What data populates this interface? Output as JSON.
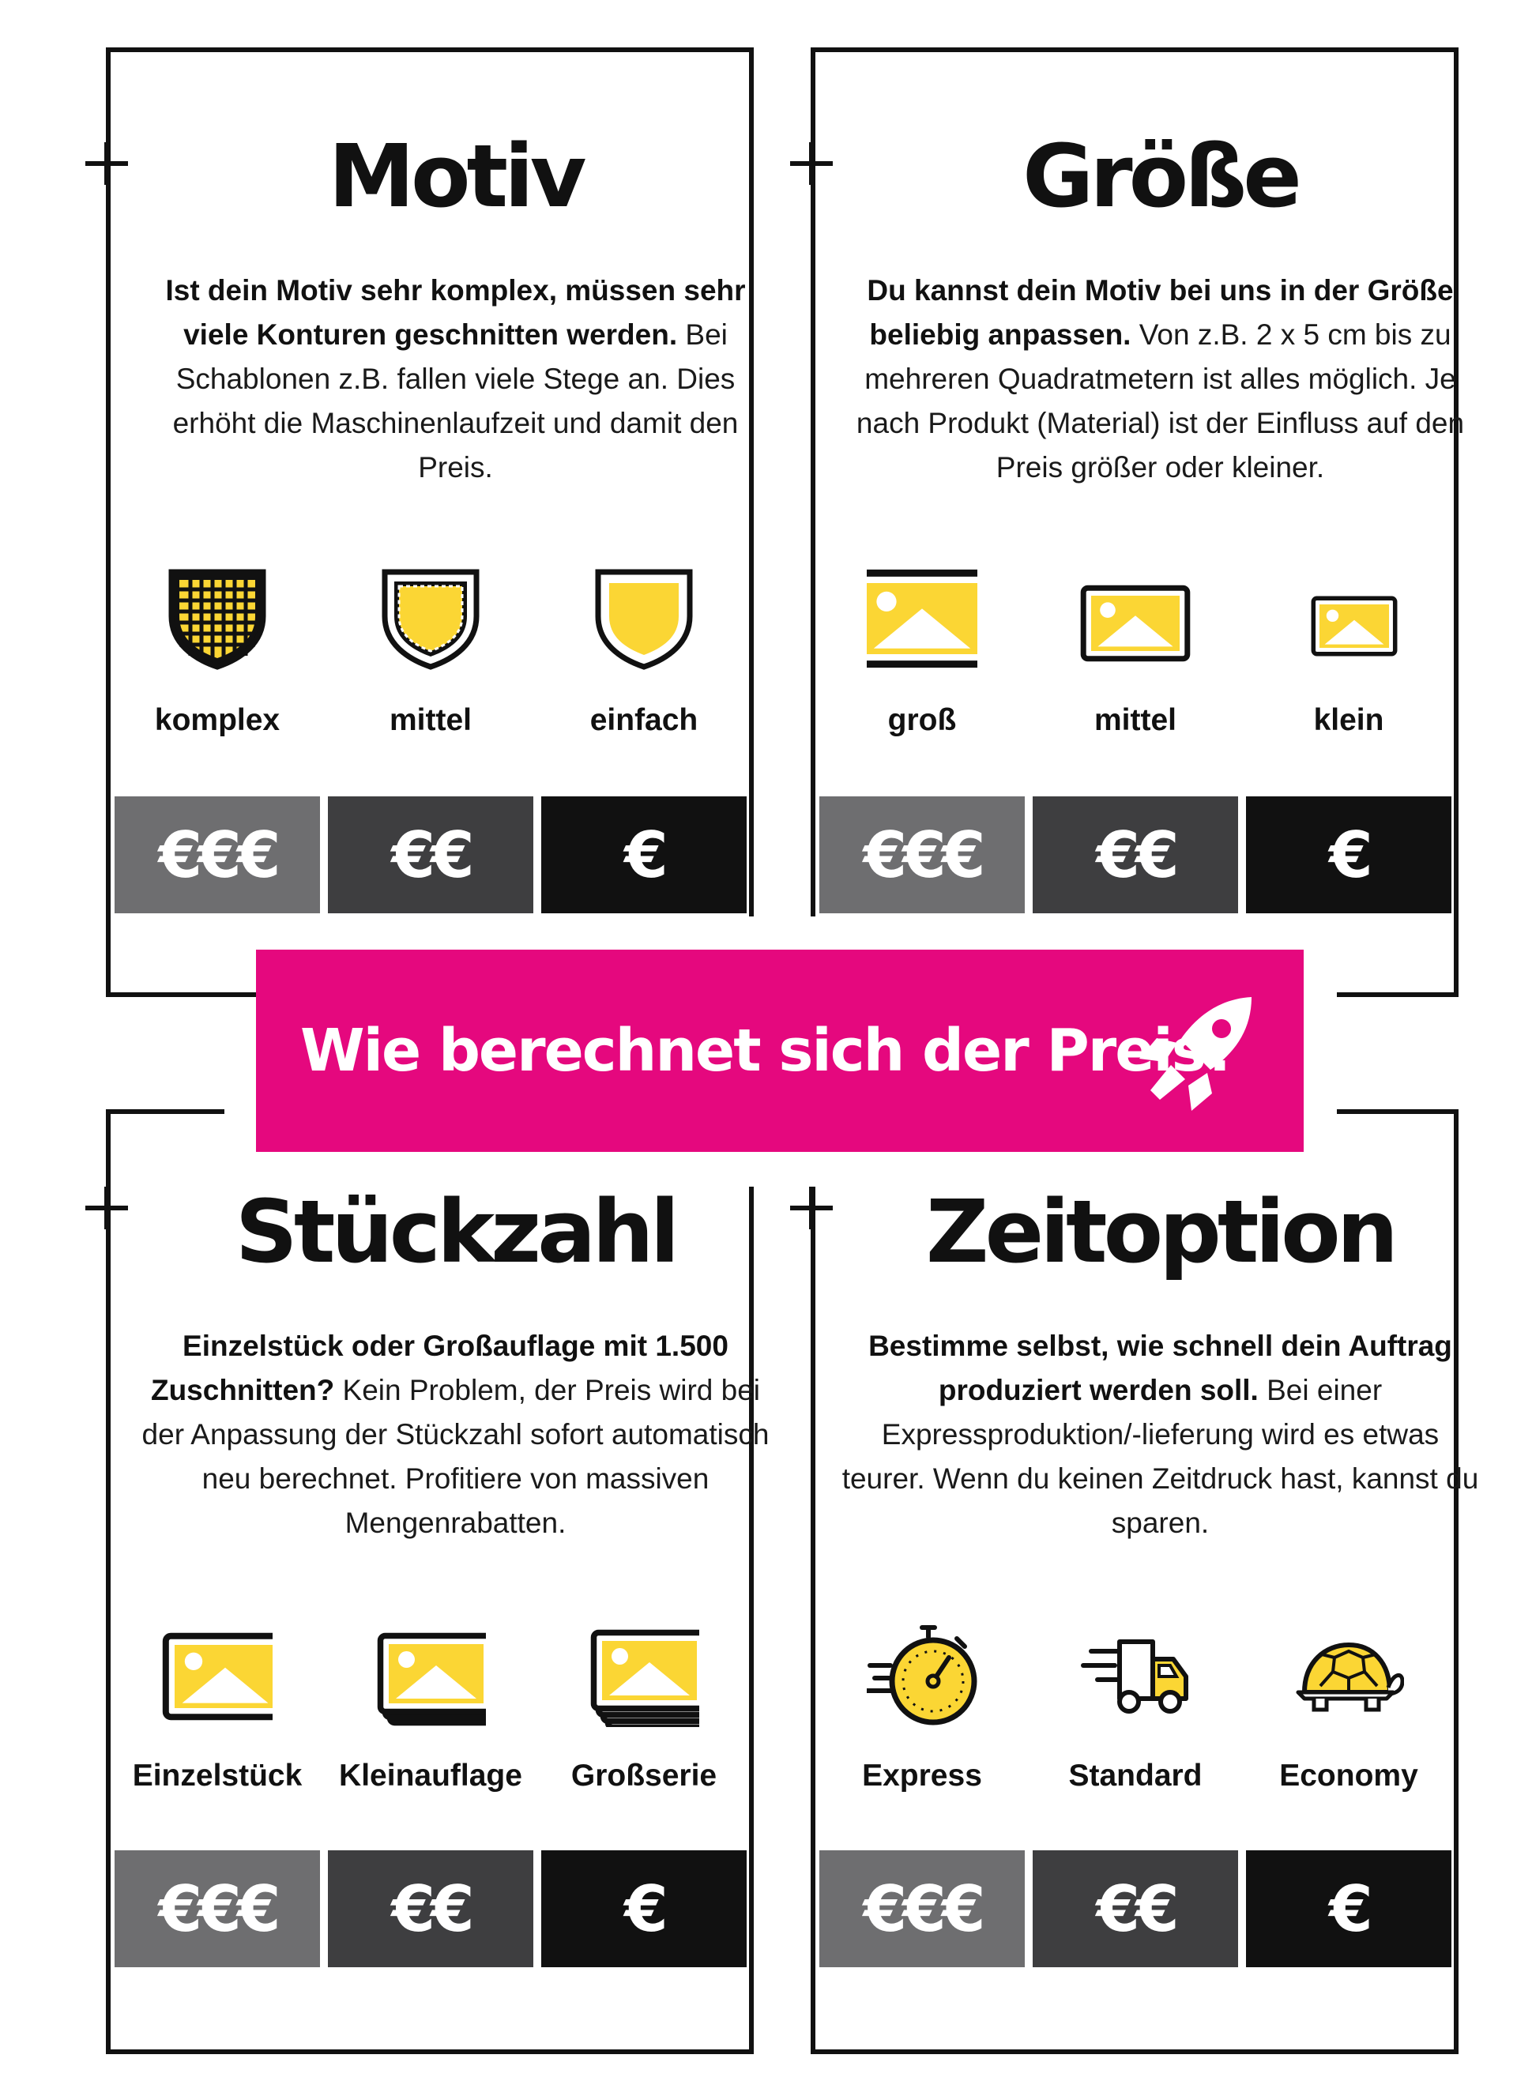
{
  "colors": {
    "magenta": "#E5087E",
    "yellow": "#FBD634",
    "ink": "#111111",
    "price_high": "#6E6E70",
    "price_mid": "#3E3E40",
    "price_low": "#111111"
  },
  "banner": {
    "text": "Wie berechnet sich der Preis?",
    "icon": "rocket-icon"
  },
  "cards": [
    {
      "title": "Motiv",
      "desc_bold": "Ist dein Motiv sehr komplex, müssen sehr viele Konturen geschnitten werden.",
      "desc_rest": " Bei Schablonen z.B. fallen viele Stege an. Dies erhöht die Maschinenlaufzeit und damit den Preis.",
      "options": [
        {
          "label": "komplex",
          "icon": "shield-grid-icon",
          "price": "€€€"
        },
        {
          "label": "mittel",
          "icon": "shield-dotted-icon",
          "price": "€€"
        },
        {
          "label": "einfach",
          "icon": "shield-plain-icon",
          "price": "€"
        }
      ]
    },
    {
      "title": "Größe",
      "desc_bold": "Du kannst dein Motiv bei uns in der Größe beliebig anpassen.",
      "desc_rest": " Von z.B. 2 x 5 cm bis zu mehreren Quadratmetern ist alles möglich. Je nach Produkt (Material) ist der Einfluss auf den Preis größer oder kleiner.",
      "options": [
        {
          "label": "groß",
          "icon": "image-large-icon",
          "price": "€€€"
        },
        {
          "label": "mittel",
          "icon": "image-medium-icon",
          "price": "€€"
        },
        {
          "label": "klein",
          "icon": "image-small-icon",
          "price": "€"
        }
      ]
    },
    {
      "title": "Stückzahl",
      "desc_bold": "Einzelstück oder Großauflage mit 1.500 Zuschnitten?",
      "desc_rest": " Kein Problem, der Preis wird bei der Anpassung der Stückzahl sofort automatisch neu berechnet. Profitiere von massiven Mengenrabatten.",
      "options": [
        {
          "label": "Einzelstück",
          "icon": "image-single-icon",
          "price": "€€€"
        },
        {
          "label": "Kleinauflage",
          "icon": "image-stack-small-icon",
          "price": "€€"
        },
        {
          "label": "Großserie",
          "icon": "image-stack-large-icon",
          "price": "€"
        }
      ]
    },
    {
      "title": "Zeitoption",
      "desc_bold": "Bestimme selbst, wie schnell dein Auftrag produziert werden soll.",
      "desc_rest": " Bei einer Expressproduktion/-lieferung wird es etwas teurer. Wenn du keinen Zeitdruck hast, kannst du sparen.",
      "options": [
        {
          "label": "Express",
          "icon": "stopwatch-icon",
          "price": "€€€"
        },
        {
          "label": "Standard",
          "icon": "truck-icon",
          "price": "€€"
        },
        {
          "label": "Economy",
          "icon": "turtle-icon",
          "price": "€"
        }
      ]
    }
  ]
}
